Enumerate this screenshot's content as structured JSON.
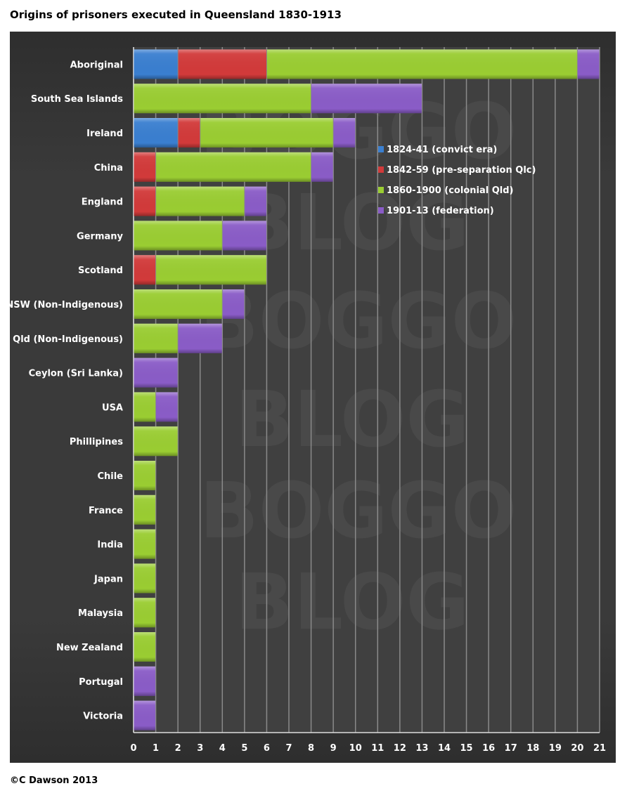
{
  "chart_data": {
    "type": "bar",
    "orientation": "horizontal",
    "stacked": true,
    "title": "Origins of prisoners executed in Queensland 1830-1913",
    "categories": [
      "Aboriginal",
      "South Sea Islands",
      "Ireland",
      "China",
      "England",
      "Germany",
      "Scotland",
      "NSW (Non-Indigenous)",
      "Qld (Non-Indigenous)",
      "Ceylon (Sri Lanka)",
      "USA",
      "Phillipines",
      "Chile",
      "France",
      "India",
      "Japan",
      "Malaysia",
      "New Zealand",
      "Portugal",
      "Victoria"
    ],
    "series": [
      {
        "name": "1824-41 (convict era)",
        "color": "#3a7fd0",
        "values": [
          2,
          0,
          2,
          0,
          0,
          0,
          0,
          0,
          0,
          0,
          0,
          0,
          0,
          0,
          0,
          0,
          0,
          0,
          0,
          0
        ]
      },
      {
        "name": "1842-59 (pre-separation Qlc)",
        "color": "#d23a3a",
        "values": [
          4,
          0,
          1,
          1,
          1,
          0,
          1,
          0,
          0,
          0,
          0,
          0,
          0,
          0,
          0,
          0,
          0,
          0,
          0,
          0
        ]
      },
      {
        "name": "1860-1900 (colonial Qld)",
        "color": "#9acd32",
        "values": [
          14,
          8,
          6,
          7,
          4,
          4,
          5,
          4,
          2,
          0,
          1,
          2,
          1,
          1,
          1,
          1,
          1,
          1,
          0,
          0
        ]
      },
      {
        "name": "1901-13 (federation)",
        "color": "#8a5cc7",
        "values": [
          1,
          5,
          1,
          1,
          1,
          2,
          0,
          1,
          2,
          2,
          1,
          0,
          0,
          0,
          0,
          0,
          0,
          0,
          1,
          1
        ]
      }
    ],
    "xlim": [
      0,
      21
    ],
    "xticks": [
      0,
      1,
      2,
      3,
      4,
      5,
      6,
      7,
      8,
      9,
      10,
      11,
      12,
      13,
      14,
      15,
      16,
      17,
      18,
      19,
      20,
      21
    ],
    "grid": true,
    "legend": "center-right"
  },
  "watermark": "BOGGO BLOG",
  "footer": "©C Dawson 2013"
}
